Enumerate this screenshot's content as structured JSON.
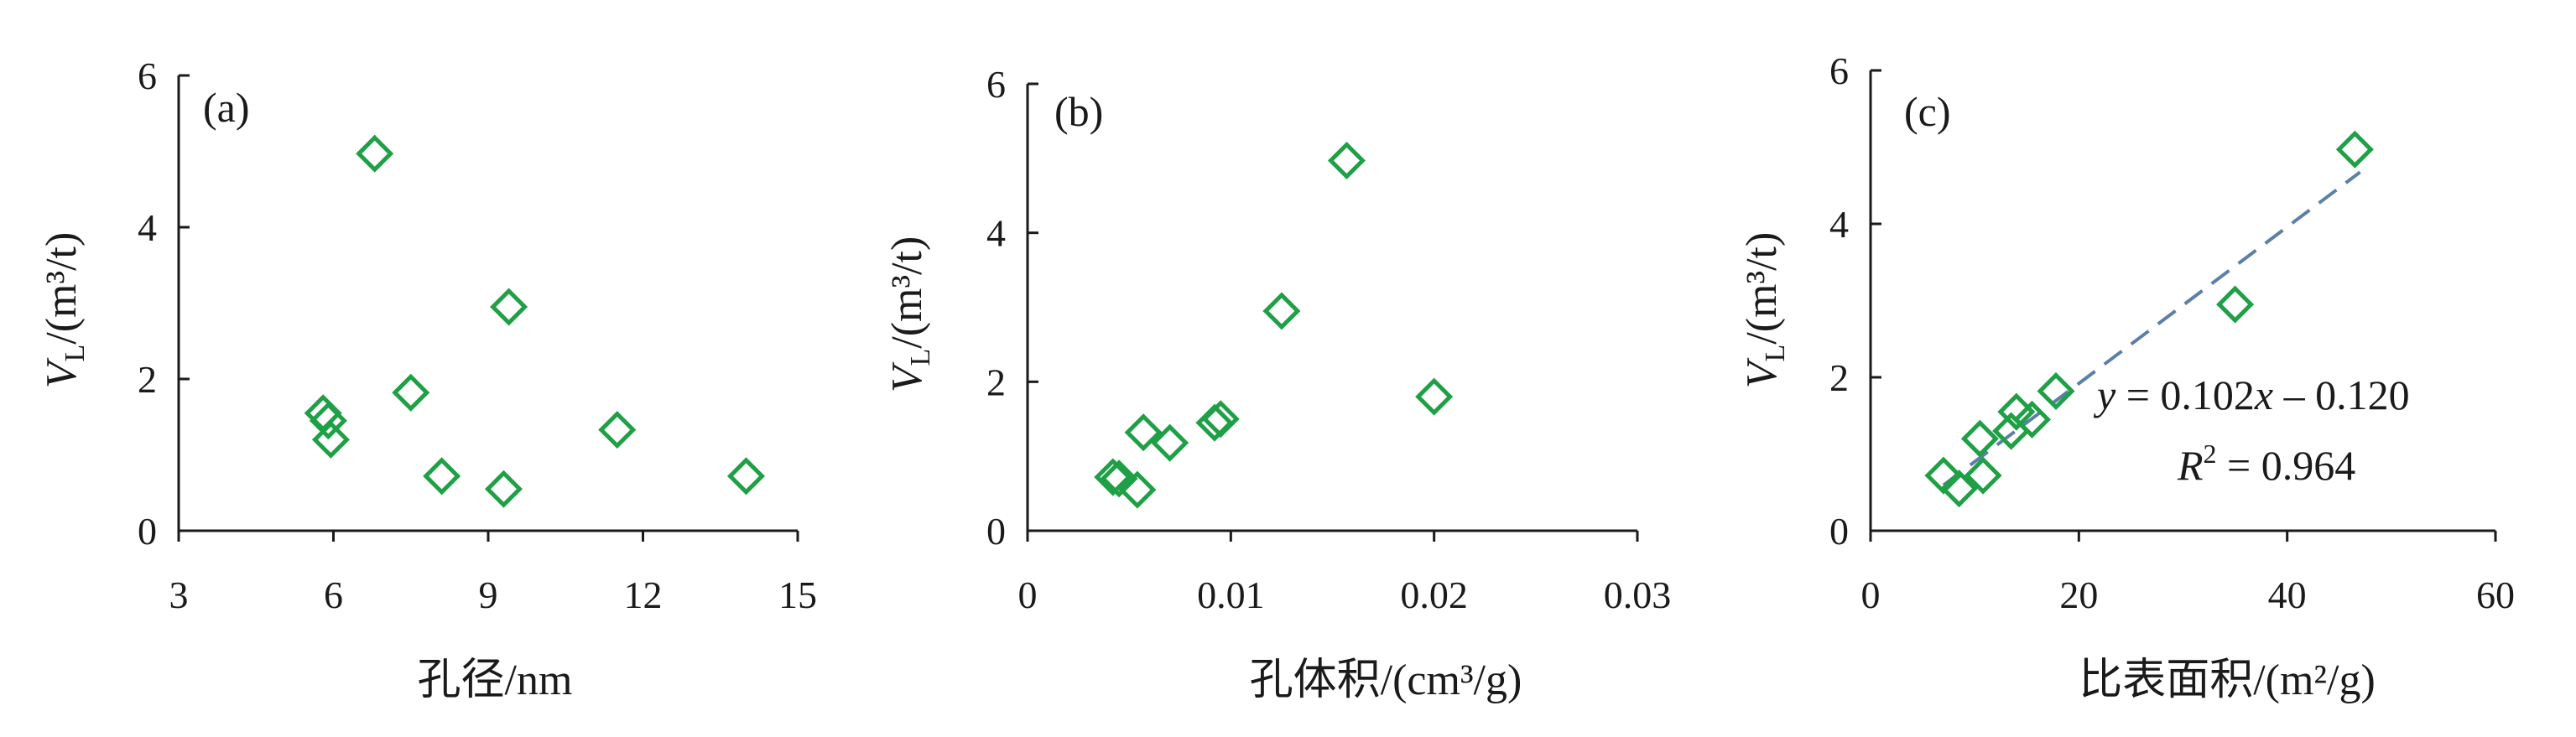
{
  "colors": {
    "marker": "#1fa046",
    "fit_line": "#5b7fa6",
    "axis": "#1a1a1a"
  },
  "chart_data": [
    {
      "type": "scatter",
      "panel_label": "(a)",
      "xlabel": "孔径/nm",
      "ylabel_main": "V",
      "ylabel_sub": "L",
      "ylabel_rest": "/(m³/t)",
      "xlim": [
        3,
        15
      ],
      "ylim": [
        0,
        6
      ],
      "xticks": [
        3,
        6,
        9,
        12,
        15
      ],
      "xtick_labels": [
        "3",
        "6",
        "9",
        "12",
        "15"
      ],
      "yticks": [
        0,
        2,
        4,
        6
      ],
      "ytick_labels": [
        "0",
        "2",
        "4",
        "6"
      ],
      "points": [
        {
          "x": 6.8,
          "y": 4.97
        },
        {
          "x": 9.4,
          "y": 2.95
        },
        {
          "x": 7.5,
          "y": 1.82
        },
        {
          "x": 5.8,
          "y": 1.55
        },
        {
          "x": 5.9,
          "y": 1.45
        },
        {
          "x": 5.95,
          "y": 1.2
        },
        {
          "x": 11.5,
          "y": 1.33
        },
        {
          "x": 8.1,
          "y": 0.72
        },
        {
          "x": 9.3,
          "y": 0.55
        },
        {
          "x": 14.0,
          "y": 0.72
        }
      ]
    },
    {
      "type": "scatter",
      "panel_label": "(b)",
      "xlabel": "孔体积/(cm³/g)",
      "ylabel_main": "V",
      "ylabel_sub": "L",
      "ylabel_rest": "/(m³/t)",
      "xlim": [
        0,
        0.03
      ],
      "ylim": [
        0,
        6
      ],
      "xticks": [
        0,
        0.01,
        0.02,
        0.03
      ],
      "xtick_labels": [
        "0",
        "0.01",
        "0.02",
        "0.03"
      ],
      "yticks": [
        0,
        2,
        4,
        6
      ],
      "ytick_labels": [
        "0",
        "2",
        "4",
        "6"
      ],
      "points": [
        {
          "x": 0.0157,
          "y": 4.97
        },
        {
          "x": 0.0125,
          "y": 2.95
        },
        {
          "x": 0.02,
          "y": 1.8
        },
        {
          "x": 0.0095,
          "y": 1.5
        },
        {
          "x": 0.0092,
          "y": 1.45
        },
        {
          "x": 0.0057,
          "y": 1.32
        },
        {
          "x": 0.007,
          "y": 1.18
        },
        {
          "x": 0.0042,
          "y": 0.72
        },
        {
          "x": 0.0045,
          "y": 0.7
        },
        {
          "x": 0.0054,
          "y": 0.55
        }
      ]
    },
    {
      "type": "scatter",
      "panel_label": "(c)",
      "xlabel": "比表面积/(m²/g)",
      "ylabel_main": "V",
      "ylabel_sub": "L",
      "ylabel_rest": "/(m³/t)",
      "xlim": [
        0,
        60
      ],
      "ylim": [
        0,
        6
      ],
      "xticks": [
        0,
        20,
        40,
        60
      ],
      "xtick_labels": [
        "0",
        "20",
        "40",
        "60"
      ],
      "yticks": [
        0,
        2,
        4,
        6
      ],
      "ytick_labels": [
        "0",
        "2",
        "4",
        "6"
      ],
      "points": [
        {
          "x": 46.5,
          "y": 4.97
        },
        {
          "x": 35.0,
          "y": 2.95
        },
        {
          "x": 17.8,
          "y": 1.82
        },
        {
          "x": 14.0,
          "y": 1.55
        },
        {
          "x": 15.5,
          "y": 1.45
        },
        {
          "x": 13.5,
          "y": 1.3
        },
        {
          "x": 10.5,
          "y": 1.2
        },
        {
          "x": 7.0,
          "y": 0.72
        },
        {
          "x": 10.8,
          "y": 0.72
        },
        {
          "x": 8.5,
          "y": 0.55
        }
      ],
      "fit": {
        "slope": 0.102,
        "intercept": -0.12,
        "x_range": [
          7,
          47
        ]
      },
      "equation": {
        "y_part": "y",
        "eq_part": " = 0.102",
        "x_part": "x",
        "rest_part": " – 0.120"
      },
      "r2": {
        "r_part": "R",
        "sup_part": "2",
        "value_part": " = 0.964"
      }
    }
  ]
}
